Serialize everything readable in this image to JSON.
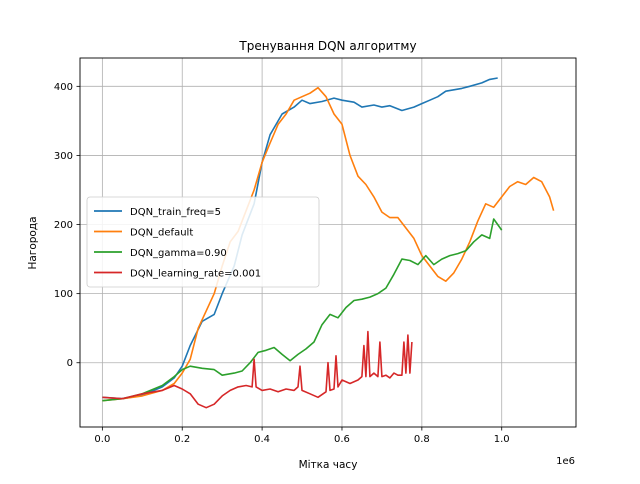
{
  "chart_data": {
    "type": "line",
    "title": "Тренування DQN алгоритму",
    "xlabel": "Мітка часу",
    "ylabel": "Нагорода",
    "x_offset_text": "1e6",
    "xlim": [
      -0.056,
      1.186
    ],
    "ylim": [
      -93,
      441
    ],
    "xticks": [
      0.0,
      0.2,
      0.4,
      0.6,
      0.8,
      1.0
    ],
    "xtick_labels": [
      "0.0",
      "0.2",
      "0.4",
      "0.6",
      "0.8",
      "1.0"
    ],
    "yticks": [
      0,
      100,
      200,
      300,
      400
    ],
    "ytick_labels": [
      "0",
      "100",
      "200",
      "300",
      "400"
    ],
    "grid": true,
    "legend_position": "center-left",
    "series": [
      {
        "name": "DQN_train_freq=5",
        "color": "#1f77b4",
        "points": [
          [
            0.0,
            -50
          ],
          [
            0.05,
            -52
          ],
          [
            0.1,
            -47
          ],
          [
            0.15,
            -35
          ],
          [
            0.18,
            -22
          ],
          [
            0.2,
            -5
          ],
          [
            0.22,
            25
          ],
          [
            0.25,
            60
          ],
          [
            0.28,
            70
          ],
          [
            0.3,
            100
          ],
          [
            0.33,
            140
          ],
          [
            0.35,
            185
          ],
          [
            0.38,
            230
          ],
          [
            0.4,
            290
          ],
          [
            0.42,
            330
          ],
          [
            0.45,
            360
          ],
          [
            0.48,
            370
          ],
          [
            0.5,
            380
          ],
          [
            0.52,
            375
          ],
          [
            0.55,
            378
          ],
          [
            0.58,
            383
          ],
          [
            0.6,
            380
          ],
          [
            0.63,
            377
          ],
          [
            0.65,
            370
          ],
          [
            0.68,
            373
          ],
          [
            0.7,
            370
          ],
          [
            0.72,
            372
          ],
          [
            0.75,
            365
          ],
          [
            0.78,
            370
          ],
          [
            0.8,
            375
          ],
          [
            0.82,
            380
          ],
          [
            0.84,
            385
          ],
          [
            0.86,
            393
          ],
          [
            0.88,
            395
          ],
          [
            0.9,
            397
          ],
          [
            0.92,
            400
          ],
          [
            0.95,
            405
          ],
          [
            0.97,
            410
          ],
          [
            0.99,
            412
          ]
        ]
      },
      {
        "name": "DQN_default",
        "color": "#ff7f0e",
        "points": [
          [
            0.0,
            -55
          ],
          [
            0.05,
            -52
          ],
          [
            0.1,
            -48
          ],
          [
            0.15,
            -40
          ],
          [
            0.18,
            -30
          ],
          [
            0.2,
            -15
          ],
          [
            0.22,
            5
          ],
          [
            0.24,
            50
          ],
          [
            0.26,
            75
          ],
          [
            0.28,
            100
          ],
          [
            0.3,
            140
          ],
          [
            0.32,
            175
          ],
          [
            0.34,
            190
          ],
          [
            0.36,
            220
          ],
          [
            0.38,
            250
          ],
          [
            0.4,
            290
          ],
          [
            0.42,
            318
          ],
          [
            0.44,
            345
          ],
          [
            0.46,
            360
          ],
          [
            0.48,
            380
          ],
          [
            0.5,
            385
          ],
          [
            0.52,
            390
          ],
          [
            0.54,
            398
          ],
          [
            0.56,
            385
          ],
          [
            0.58,
            360
          ],
          [
            0.6,
            345
          ],
          [
            0.62,
            300
          ],
          [
            0.64,
            270
          ],
          [
            0.66,
            258
          ],
          [
            0.68,
            240
          ],
          [
            0.7,
            218
          ],
          [
            0.72,
            210
          ],
          [
            0.74,
            210
          ],
          [
            0.76,
            195
          ],
          [
            0.78,
            180
          ],
          [
            0.8,
            155
          ],
          [
            0.82,
            140
          ],
          [
            0.84,
            125
          ],
          [
            0.86,
            118
          ],
          [
            0.88,
            130
          ],
          [
            0.9,
            150
          ],
          [
            0.92,
            175
          ],
          [
            0.94,
            205
          ],
          [
            0.96,
            230
          ],
          [
            0.98,
            225
          ],
          [
            1.0,
            240
          ],
          [
            1.02,
            255
          ],
          [
            1.04,
            262
          ],
          [
            1.06,
            258
          ],
          [
            1.08,
            268
          ],
          [
            1.1,
            262
          ],
          [
            1.12,
            240
          ],
          [
            1.13,
            220
          ]
        ]
      },
      {
        "name": "DQN_gamma=0.90",
        "color": "#2ca02c",
        "points": [
          [
            0.0,
            -55
          ],
          [
            0.05,
            -52
          ],
          [
            0.1,
            -45
          ],
          [
            0.15,
            -33
          ],
          [
            0.18,
            -20
          ],
          [
            0.2,
            -10
          ],
          [
            0.22,
            -5
          ],
          [
            0.25,
            -8
          ],
          [
            0.28,
            -10
          ],
          [
            0.3,
            -18
          ],
          [
            0.33,
            -15
          ],
          [
            0.35,
            -12
          ],
          [
            0.37,
            0
          ],
          [
            0.39,
            15
          ],
          [
            0.41,
            18
          ],
          [
            0.43,
            22
          ],
          [
            0.45,
            12
          ],
          [
            0.47,
            3
          ],
          [
            0.49,
            12
          ],
          [
            0.51,
            20
          ],
          [
            0.53,
            30
          ],
          [
            0.55,
            55
          ],
          [
            0.57,
            70
          ],
          [
            0.59,
            65
          ],
          [
            0.61,
            80
          ],
          [
            0.63,
            90
          ],
          [
            0.65,
            92
          ],
          [
            0.67,
            95
          ],
          [
            0.69,
            100
          ],
          [
            0.71,
            108
          ],
          [
            0.73,
            128
          ],
          [
            0.75,
            150
          ],
          [
            0.77,
            148
          ],
          [
            0.79,
            142
          ],
          [
            0.81,
            155
          ],
          [
            0.83,
            142
          ],
          [
            0.85,
            150
          ],
          [
            0.87,
            155
          ],
          [
            0.89,
            158
          ],
          [
            0.91,
            162
          ],
          [
            0.93,
            175
          ],
          [
            0.95,
            185
          ],
          [
            0.97,
            180
          ],
          [
            0.98,
            208
          ],
          [
            1.0,
            192
          ]
        ]
      },
      {
        "name": "DQN_learning_rate=0.001",
        "color": "#d62728",
        "points": [
          [
            0.0,
            -50
          ],
          [
            0.05,
            -52
          ],
          [
            0.1,
            -45
          ],
          [
            0.15,
            -40
          ],
          [
            0.18,
            -33
          ],
          [
            0.2,
            -38
          ],
          [
            0.22,
            -45
          ],
          [
            0.24,
            -60
          ],
          [
            0.26,
            -65
          ],
          [
            0.28,
            -60
          ],
          [
            0.3,
            -48
          ],
          [
            0.32,
            -40
          ],
          [
            0.34,
            -35
          ],
          [
            0.36,
            -33
          ],
          [
            0.375,
            -35
          ],
          [
            0.38,
            5
          ],
          [
            0.385,
            -35
          ],
          [
            0.4,
            -40
          ],
          [
            0.42,
            -38
          ],
          [
            0.44,
            -42
          ],
          [
            0.46,
            -38
          ],
          [
            0.48,
            -40
          ],
          [
            0.49,
            -35
          ],
          [
            0.495,
            -5
          ],
          [
            0.5,
            -40
          ],
          [
            0.52,
            -45
          ],
          [
            0.54,
            -50
          ],
          [
            0.56,
            -42
          ],
          [
            0.565,
            0
          ],
          [
            0.57,
            -40
          ],
          [
            0.58,
            -38
          ],
          [
            0.585,
            10
          ],
          [
            0.59,
            -35
          ],
          [
            0.6,
            -25
          ],
          [
            0.62,
            -30
          ],
          [
            0.64,
            -25
          ],
          [
            0.65,
            -20
          ],
          [
            0.655,
            25
          ],
          [
            0.66,
            -20
          ],
          [
            0.665,
            45
          ],
          [
            0.67,
            -20
          ],
          [
            0.68,
            -15
          ],
          [
            0.69,
            -20
          ],
          [
            0.695,
            30
          ],
          [
            0.7,
            -20
          ],
          [
            0.71,
            -18
          ],
          [
            0.72,
            -22
          ],
          [
            0.73,
            -15
          ],
          [
            0.74,
            -18
          ],
          [
            0.75,
            -18
          ],
          [
            0.755,
            30
          ],
          [
            0.76,
            -15
          ],
          [
            0.765,
            40
          ],
          [
            0.77,
            -15
          ],
          [
            0.775,
            30
          ]
        ]
      }
    ]
  }
}
